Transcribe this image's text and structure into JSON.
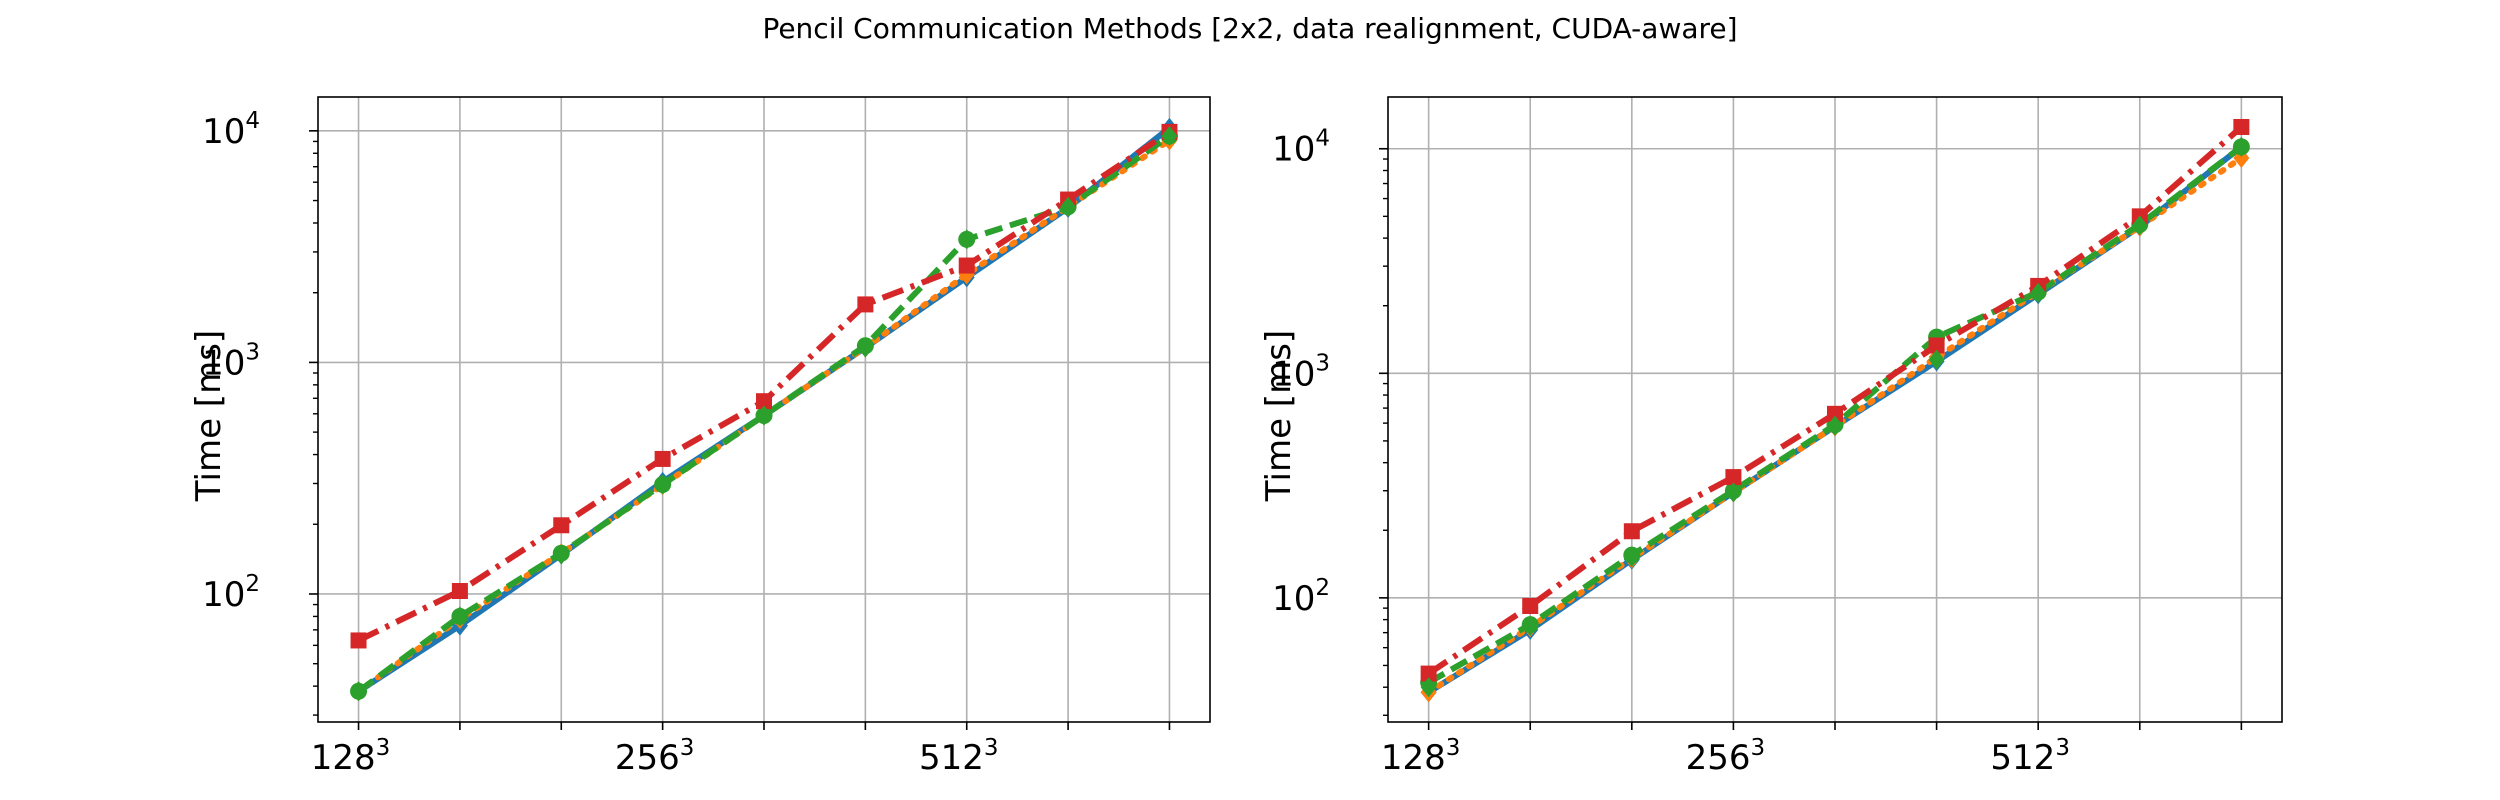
{
  "figure": {
    "title": "Pencil Communication Methods [2x2, data realignment, CUDA-aware]"
  },
  "chart_data": [
    {
      "type": "line",
      "yscale": "log",
      "ylabel": "Time [ms]",
      "xlabel": "",
      "grid": true,
      "ylim": [
        28,
        14000
      ],
      "x": [
        0,
        1,
        2,
        3,
        4,
        5,
        6,
        7,
        8
      ],
      "xticks": [
        {
          "x": 0,
          "base": "128",
          "exp": "3"
        },
        {
          "x": 3,
          "base": "256",
          "exp": "3"
        },
        {
          "x": 6,
          "base": "512",
          "exp": "3"
        }
      ],
      "yticks": [
        {
          "value": 100,
          "base": "10",
          "exp": "2"
        },
        {
          "value": 1000,
          "base": "10",
          "exp": "3"
        },
        {
          "value": 10000,
          "base": "10",
          "exp": "4"
        }
      ],
      "series": [
        {
          "color": "#1f77b4",
          "dash": "solid",
          "marker": "diamond",
          "values": [
            38,
            73,
            148,
            305,
            590,
            1160,
            2330,
            4650,
            10300
          ]
        },
        {
          "color": "#ff7f0e",
          "dash": "dotted",
          "marker": "diamond",
          "values": [
            38,
            78,
            150,
            295,
            590,
            1160,
            2400,
            4700,
            9100
          ]
        },
        {
          "color": "#2ca02c",
          "dash": "dashed",
          "marker": "circle",
          "values": [
            38,
            80,
            150,
            297,
            590,
            1180,
            3400,
            4700,
            9500
          ]
        },
        {
          "color": "#d62728",
          "dash": "dashdot",
          "marker": "square",
          "values": [
            63,
            103,
            198,
            383,
            680,
            1780,
            2620,
            5050,
            9900
          ]
        },
        {
          "color": "#2ca02c",
          "dash": "none",
          "marker": "diamond",
          "values": [
            38,
            80,
            148,
            297,
            590,
            1160,
            3400,
            4700,
            9500
          ]
        }
      ]
    },
    {
      "type": "line",
      "yscale": "log",
      "ylabel": "Time [ms]",
      "xlabel": "",
      "grid": true,
      "ylim": [
        28,
        17000
      ],
      "x": [
        0,
        1,
        2,
        3,
        4,
        5,
        6,
        7,
        8
      ],
      "xticks": [
        {
          "x": 0,
          "base": "128",
          "exp": "3"
        },
        {
          "x": 3,
          "base": "256",
          "exp": "3"
        },
        {
          "x": 6,
          "base": "512",
          "exp": "3"
        }
      ],
      "yticks": [
        {
          "value": 100,
          "base": "10",
          "exp": "2"
        },
        {
          "value": 1000,
          "base": "10",
          "exp": "3"
        },
        {
          "value": 10000,
          "base": "10",
          "exp": "4"
        }
      ],
      "series": [
        {
          "color": "#1f77b4",
          "dash": "solid",
          "marker": "diamond",
          "values": [
            38,
            72,
            148,
            295,
            580,
            1130,
            2250,
            4500,
            10200
          ]
        },
        {
          "color": "#ff7f0e",
          "dash": "dotted",
          "marker": "diamond",
          "values": [
            38,
            74,
            150,
            295,
            580,
            1180,
            2300,
            4500,
            9100
          ]
        },
        {
          "color": "#2ca02c",
          "dash": "dashed",
          "marker": "circle",
          "values": [
            42,
            76,
            155,
            300,
            590,
            1450,
            2300,
            4600,
            10200
          ]
        },
        {
          "color": "#d62728",
          "dash": "dashdot",
          "marker": "square",
          "values": [
            46,
            92,
            198,
            345,
            660,
            1330,
            2450,
            5000,
            12500
          ]
        },
        {
          "color": "#2ca02c",
          "dash": "none",
          "marker": "diamond",
          "values": [
            40,
            75,
            152,
            295,
            585,
            1150,
            2280,
            4550,
            10200
          ]
        }
      ]
    }
  ]
}
